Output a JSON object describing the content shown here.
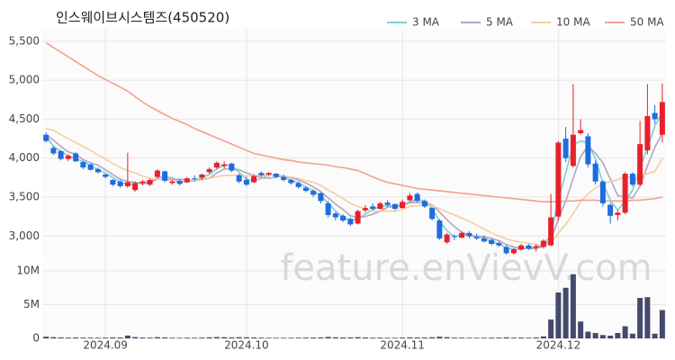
{
  "chart_data": [
    {
      "type": "candlestick",
      "title": "인스웨이브시스템즈(450520)",
      "watermark": "feature.enVievV.com",
      "categories": [
        null,
        null,
        null,
        null,
        null,
        null,
        null,
        null,
        "2024.09",
        null,
        null,
        null,
        null,
        null,
        null,
        null,
        null,
        null,
        null,
        null,
        null,
        null,
        null,
        null,
        null,
        null,
        null,
        "2024.10",
        null,
        null,
        null,
        null,
        null,
        null,
        null,
        null,
        null,
        null,
        null,
        null,
        null,
        null,
        null,
        null,
        null,
        null,
        null,
        null,
        "2024.11",
        null,
        null,
        null,
        null,
        null,
        null,
        null,
        null,
        null,
        null,
        null,
        null,
        null,
        null,
        null,
        null,
        null,
        null,
        null,
        null,
        "2024.12",
        null,
        null,
        null,
        null,
        null,
        null,
        null,
        null,
        null,
        null,
        null,
        null,
        null,
        null
      ],
      "open": [
        4300,
        4130,
        4090,
        3990,
        4060,
        3950,
        3920,
        3860,
        3790,
        3720,
        3700,
        3640,
        3590,
        3680,
        3660,
        3760,
        3830,
        3680,
        3710,
        3690,
        3740,
        3750,
        3820,
        3880,
        3900,
        3930,
        3780,
        3720,
        3690,
        3810,
        3790,
        3800,
        3760,
        3720,
        3680,
        3620,
        3580,
        3550,
        3420,
        3290,
        3260,
        3220,
        3160,
        3330,
        3380,
        3350,
        3430,
        3410,
        3360,
        3460,
        3540,
        3450,
        3360,
        3200,
        2920,
        3000,
        2980,
        3040,
        2990,
        2970,
        2950,
        2910,
        2860,
        2780,
        2830,
        2880,
        2850,
        2860,
        2880,
        3250,
        4250,
        3900,
        4320,
        4280,
        3930,
        3700,
        3400,
        3270,
        3300,
        3800,
        3660,
        4100,
        4580,
        4300
      ],
      "high": [
        4330,
        4160,
        4100,
        4050,
        4080,
        3960,
        3930,
        3880,
        3800,
        3730,
        3720,
        4070,
        3700,
        3720,
        3740,
        3860,
        3840,
        3720,
        3730,
        3760,
        3780,
        3800,
        3880,
        3960,
        3960,
        3940,
        3800,
        3760,
        3790,
        3830,
        3820,
        3810,
        3790,
        3730,
        3700,
        3640,
        3600,
        3560,
        3450,
        3310,
        3280,
        3240,
        3340,
        3400,
        3420,
        3440,
        3460,
        3420,
        3470,
        3550,
        3560,
        3470,
        3370,
        3220,
        3040,
        3020,
        3060,
        3060,
        3030,
        3010,
        2970,
        2940,
        2880,
        2850,
        2900,
        2900,
        2900,
        2960,
        3540,
        4220,
        4400,
        4950,
        4500,
        4320,
        3970,
        3720,
        3430,
        3330,
        3820,
        3820,
        4480,
        4950,
        4680,
        4960
      ],
      "low": [
        4200,
        4040,
        3970,
        3960,
        3950,
        3860,
        3840,
        3800,
        3740,
        3640,
        3620,
        3620,
        3570,
        3650,
        3640,
        3740,
        3690,
        3660,
        3650,
        3680,
        3700,
        3720,
        3800,
        3860,
        3870,
        3820,
        3680,
        3640,
        3680,
        3760,
        3760,
        3740,
        3700,
        3660,
        3610,
        3560,
        3500,
        3420,
        3240,
        3200,
        3180,
        3130,
        3150,
        3300,
        3330,
        3340,
        3380,
        3330,
        3350,
        3440,
        3430,
        3360,
        3200,
        2950,
        2900,
        2950,
        2970,
        2970,
        2950,
        2920,
        2880,
        2860,
        2760,
        2760,
        2810,
        2820,
        2800,
        2840,
        2870,
        3200,
        3950,
        3880,
        4300,
        3880,
        3660,
        3380,
        3160,
        3200,
        3280,
        3640,
        3640,
        4050,
        4440,
        4200
      ],
      "close": [
        4220,
        4060,
        3990,
        4030,
        3960,
        3880,
        3850,
        3820,
        3760,
        3660,
        3640,
        3690,
        3680,
        3700,
        3720,
        3840,
        3710,
        3700,
        3670,
        3740,
        3730,
        3790,
        3860,
        3940,
        3920,
        3840,
        3700,
        3660,
        3770,
        3780,
        3810,
        3760,
        3720,
        3680,
        3630,
        3580,
        3530,
        3450,
        3270,
        3240,
        3200,
        3150,
        3320,
        3360,
        3350,
        3420,
        3400,
        3350,
        3440,
        3520,
        3450,
        3380,
        3220,
        2970,
        3020,
        2990,
        3040,
        3000,
        2970,
        2930,
        2900,
        2880,
        2780,
        2830,
        2880,
        2840,
        2870,
        2940,
        3240,
        4200,
        4000,
        4300,
        4360,
        3920,
        3700,
        3420,
        3260,
        3300,
        3800,
        3660,
        4180,
        4540,
        4500,
        4720
      ],
      "up_color": "#e8202a",
      "down_color": "#1d6ce0",
      "series": [
        {
          "name": "3 MA",
          "color": "#7ecfd0",
          "values": [
            4280,
            4150,
            4090,
            4030,
            3990,
            3960,
            3900,
            3850,
            3810,
            3750,
            3690,
            3660,
            3670,
            3690,
            3700,
            3750,
            3760,
            3750,
            3690,
            3700,
            3710,
            3750,
            3790,
            3860,
            3910,
            3900,
            3820,
            3730,
            3710,
            3740,
            3790,
            3780,
            3760,
            3720,
            3680,
            3630,
            3580,
            3520,
            3420,
            3320,
            3240,
            3200,
            3220,
            3280,
            3340,
            3380,
            3390,
            3390,
            3400,
            3440,
            3470,
            3450,
            3350,
            3190,
            3070,
            2990,
            3020,
            3010,
            3000,
            2970,
            2930,
            2900,
            2850,
            2830,
            2830,
            2850,
            2860,
            2880,
            3020,
            3460,
            3810,
            4170,
            4220,
            4190,
            3990,
            3680,
            3460,
            3330,
            3450,
            3590,
            3880,
            4130,
            4410,
            4590
          ]
        },
        {
          "name": "5 MA",
          "color": "#b3a4c6",
          "values": [
            4300,
            4230,
            4150,
            4080,
            4050,
            3980,
            3940,
            3910,
            3850,
            3790,
            3730,
            3700,
            3690,
            3670,
            3690,
            3730,
            3730,
            3730,
            3730,
            3720,
            3710,
            3730,
            3740,
            3810,
            3860,
            3870,
            3850,
            3810,
            3780,
            3750,
            3740,
            3760,
            3770,
            3750,
            3720,
            3680,
            3630,
            3570,
            3490,
            3410,
            3340,
            3260,
            3240,
            3250,
            3280,
            3320,
            3370,
            3380,
            3390,
            3430,
            3430,
            3430,
            3400,
            3310,
            3210,
            3120,
            3050,
            3000,
            3000,
            2990,
            2970,
            2940,
            2890,
            2860,
            2850,
            2840,
            2840,
            2870,
            2950,
            3220,
            3450,
            3740,
            4020,
            4160,
            4060,
            3940,
            3730,
            3520,
            3500,
            3490,
            3640,
            3900,
            4140,
            4320
          ]
        },
        {
          "name": "10 MA",
          "color": "#f2cf9e",
          "values": [
            4380,
            4360,
            4300,
            4250,
            4200,
            4150,
            4100,
            4040,
            3990,
            3930,
            3880,
            3840,
            3810,
            3770,
            3740,
            3730,
            3720,
            3710,
            3700,
            3710,
            3710,
            3720,
            3740,
            3760,
            3780,
            3780,
            3780,
            3770,
            3780,
            3780,
            3790,
            3790,
            3770,
            3760,
            3740,
            3710,
            3690,
            3650,
            3590,
            3540,
            3480,
            3420,
            3380,
            3350,
            3320,
            3320,
            3320,
            3320,
            3340,
            3380,
            3390,
            3400,
            3390,
            3350,
            3310,
            3270,
            3230,
            3190,
            3140,
            3090,
            3040,
            3000,
            2960,
            2940,
            2920,
            2910,
            2890,
            2880,
            2910,
            3040,
            3150,
            3290,
            3440,
            3540,
            3620,
            3670,
            3700,
            3720,
            3770,
            3750,
            3770,
            3800,
            3830,
            3990
          ]
        },
        {
          "name": "50 MA",
          "color": "#f4a08e",
          "values": [
            5480,
            5420,
            5360,
            5300,
            5240,
            5180,
            5120,
            5060,
            5010,
            4960,
            4910,
            4860,
            4790,
            4720,
            4660,
            4610,
            4560,
            4510,
            4470,
            4430,
            4380,
            4340,
            4300,
            4260,
            4220,
            4180,
            4140,
            4100,
            4060,
            4040,
            4020,
            4000,
            3980,
            3970,
            3950,
            3940,
            3930,
            3920,
            3910,
            3890,
            3880,
            3860,
            3840,
            3800,
            3760,
            3720,
            3690,
            3670,
            3650,
            3630,
            3610,
            3600,
            3590,
            3580,
            3570,
            3560,
            3550,
            3540,
            3530,
            3520,
            3510,
            3500,
            3490,
            3480,
            3470,
            3460,
            3450,
            3440,
            3440,
            3440,
            3450,
            3450,
            3460,
            3460,
            3460,
            3450,
            3450,
            3450,
            3450,
            3460,
            3460,
            3470,
            3480,
            3500
          ]
        }
      ],
      "legend": "top-right",
      "grid": true,
      "ylim": [
        2680,
        5660
      ],
      "yticks": [
        {
          "value": 3000,
          "label": "3,000"
        },
        {
          "value": 3500,
          "label": "3,500"
        },
        {
          "value": 4000,
          "label": "4,000"
        },
        {
          "value": 4500,
          "label": "4,500"
        },
        {
          "value": 5000,
          "label": "5,000"
        },
        {
          "value": 5500,
          "label": "5,500"
        }
      ]
    },
    {
      "type": "bar",
      "color": "#444a6b",
      "values": [
        250000,
        180000,
        150000,
        120000,
        140000,
        120000,
        110000,
        100000,
        120000,
        150000,
        130000,
        420000,
        200000,
        130000,
        110000,
        180000,
        150000,
        100000,
        90000,
        110000,
        100000,
        120000,
        160000,
        200000,
        170000,
        150000,
        180000,
        160000,
        140000,
        110000,
        100000,
        90000,
        90000,
        100000,
        110000,
        120000,
        130000,
        150000,
        220000,
        160000,
        140000,
        150000,
        180000,
        140000,
        110000,
        120000,
        100000,
        90000,
        120000,
        160000,
        140000,
        130000,
        170000,
        250000,
        180000,
        120000,
        110000,
        100000,
        90000,
        100000,
        110000,
        120000,
        160000,
        110000,
        120000,
        100000,
        130000,
        300000,
        2800000,
        6800000,
        7500000,
        9500000,
        2500000,
        1000000,
        800000,
        500000,
        400000,
        800000,
        1800000,
        700000,
        6000000,
        6100000,
        700000,
        4200000
      ],
      "grid": true,
      "ylim": [
        0,
        11200000
      ],
      "yticks": [
        0,
        {
          "value": 5000000,
          "label": "5M"
        },
        {
          "value": 10000000,
          "label": "10M"
        }
      ]
    }
  ]
}
